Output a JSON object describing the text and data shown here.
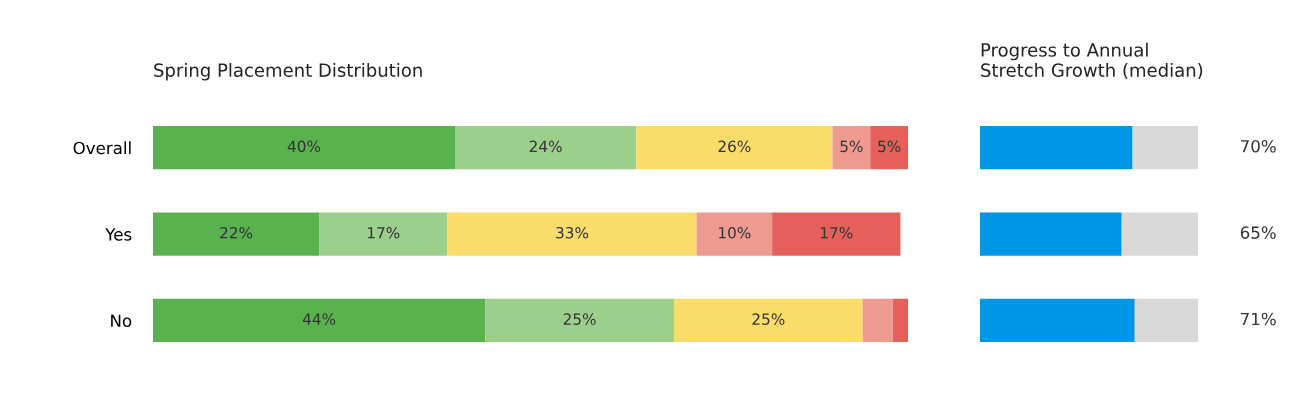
{
  "chart_data": [
    {
      "type": "bar",
      "title": "Spring Placement Distribution",
      "orientation": "horizontal",
      "stacked": true,
      "categories": [
        "Overall",
        "Yes",
        "No"
      ],
      "xlim": [
        0,
        100
      ],
      "tick_labels": "y",
      "grid": false,
      "legend": false,
      "series": [
        {
          "color": "#5ab24f",
          "values": [
            40,
            22,
            44
          ],
          "value_labels": [
            "40%",
            "22%",
            "44%"
          ]
        },
        {
          "color": "#9ccf8c",
          "values": [
            24,
            17,
            25
          ],
          "value_labels": [
            "24%",
            "17%",
            "25%"
          ]
        },
        {
          "color": "#f9dc6a",
          "values": [
            26,
            33,
            25
          ],
          "value_labels": [
            "26%",
            "33%",
            "25%"
          ]
        },
        {
          "color": "#ee9a90",
          "values": [
            5,
            10,
            4
          ],
          "value_labels": [
            "5%",
            "10%",
            null
          ]
        },
        {
          "color": "#e5605a",
          "values": [
            5,
            17,
            2
          ],
          "value_labels": [
            "5%",
            "17%",
            null
          ]
        }
      ]
    },
    {
      "type": "bar",
      "title": "Progress to Annual\nStretch Growth (median)",
      "orientation": "horizontal",
      "stacked": true,
      "categories": [
        null,
        null,
        null
      ],
      "xlim": [
        0,
        100
      ],
      "tick_labels": false,
      "grid": false,
      "legend": false,
      "series": [
        {
          "color": "#0096e8",
          "values": [
            70,
            65,
            71
          ],
          "value_labels": [
            "70%",
            "65%",
            "71%"
          ]
        },
        {
          "color": "#d9d9d9",
          "values": [
            30,
            35,
            29
          ]
        }
      ]
    }
  ]
}
